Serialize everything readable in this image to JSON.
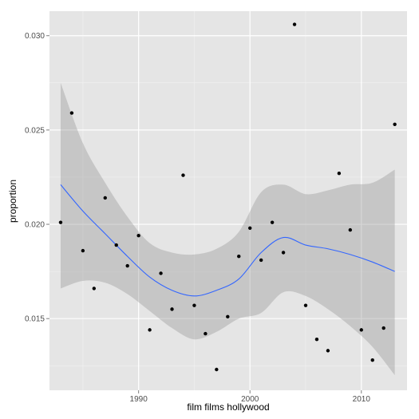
{
  "chart_data": {
    "type": "scatter",
    "title": "",
    "xlabel": "film films hollywood",
    "ylabel": "proportion",
    "xlim": [
      1982.0,
      2014.1
    ],
    "ylim": [
      0.0112,
      0.0313
    ],
    "x_ticks": [
      1990,
      2000,
      2010
    ],
    "x_tick_labels": [
      "1990",
      "2000",
      "2010"
    ],
    "y_ticks": [
      0.015,
      0.02,
      0.025,
      0.03
    ],
    "y_tick_labels": [
      "0.015",
      "0.020",
      "0.025",
      "0.030"
    ],
    "grid": true,
    "legend": "none",
    "colors": {
      "panel_background": "#E5E5E5",
      "grid_major": "#FFFFFF",
      "grid_minor": "#F2F2F2",
      "points": "#000000",
      "smooth_line": "#3366FF",
      "confidence_band": "#999999"
    },
    "series": [
      {
        "type": "scatter",
        "points": [
          {
            "x": 1983,
            "y": 0.0201
          },
          {
            "x": 1984,
            "y": 0.0259
          },
          {
            "x": 1985,
            "y": 0.0186
          },
          {
            "x": 1986,
            "y": 0.0166
          },
          {
            "x": 1987,
            "y": 0.0214
          },
          {
            "x": 1988,
            "y": 0.0189
          },
          {
            "x": 1989,
            "y": 0.0178
          },
          {
            "x": 1990,
            "y": 0.0194
          },
          {
            "x": 1991,
            "y": 0.0144
          },
          {
            "x": 1992,
            "y": 0.0174
          },
          {
            "x": 1993,
            "y": 0.0155
          },
          {
            "x": 1994,
            "y": 0.0226
          },
          {
            "x": 1995,
            "y": 0.0157
          },
          {
            "x": 1996,
            "y": 0.0142
          },
          {
            "x": 1997,
            "y": 0.0123
          },
          {
            "x": 1998,
            "y": 0.0151
          },
          {
            "x": 1999,
            "y": 0.0183
          },
          {
            "x": 2000,
            "y": 0.0198
          },
          {
            "x": 2001,
            "y": 0.0181
          },
          {
            "x": 2002,
            "y": 0.0201
          },
          {
            "x": 2003,
            "y": 0.0185
          },
          {
            "x": 2004,
            "y": 0.0306
          },
          {
            "x": 2005,
            "y": 0.0157
          },
          {
            "x": 2006,
            "y": 0.0139
          },
          {
            "x": 2007,
            "y": 0.0133
          },
          {
            "x": 2008,
            "y": 0.0227
          },
          {
            "x": 2009,
            "y": 0.0197
          },
          {
            "x": 2010,
            "y": 0.0144
          },
          {
            "x": 2011,
            "y": 0.0128
          },
          {
            "x": 2012,
            "y": 0.0145
          },
          {
            "x": 2013,
            "y": 0.0253
          }
        ]
      },
      {
        "type": "smooth",
        "points": [
          {
            "x": 1983,
            "y": 0.0221,
            "lower": 0.0166,
            "upper": 0.0275
          },
          {
            "x": 1985,
            "y": 0.0207,
            "lower": 0.017,
            "upper": 0.0243
          },
          {
            "x": 1987,
            "y": 0.0195,
            "lower": 0.0169,
            "upper": 0.0222
          },
          {
            "x": 1989,
            "y": 0.0183,
            "lower": 0.0163,
            "upper": 0.0204
          },
          {
            "x": 1991,
            "y": 0.0172,
            "lower": 0.0154,
            "upper": 0.019
          },
          {
            "x": 1993,
            "y": 0.0165,
            "lower": 0.0145,
            "upper": 0.0185
          },
          {
            "x": 1995,
            "y": 0.0162,
            "lower": 0.0139,
            "upper": 0.0184
          },
          {
            "x": 1997,
            "y": 0.0165,
            "lower": 0.0143,
            "upper": 0.0187
          },
          {
            "x": 1999,
            "y": 0.0171,
            "lower": 0.015,
            "upper": 0.0196
          },
          {
            "x": 2001,
            "y": 0.0185,
            "lower": 0.0153,
            "upper": 0.0217
          },
          {
            "x": 2003,
            "y": 0.0193,
            "lower": 0.0164,
            "upper": 0.0221
          },
          {
            "x": 2005,
            "y": 0.0189,
            "lower": 0.0162,
            "upper": 0.0216
          },
          {
            "x": 2007,
            "y": 0.0187,
            "lower": 0.0155,
            "upper": 0.0218
          },
          {
            "x": 2009,
            "y": 0.0184,
            "lower": 0.0146,
            "upper": 0.0221
          },
          {
            "x": 2011,
            "y": 0.018,
            "lower": 0.0135,
            "upper": 0.0222
          },
          {
            "x": 2013,
            "y": 0.0175,
            "lower": 0.012,
            "upper": 0.0229
          }
        ]
      }
    ]
  }
}
